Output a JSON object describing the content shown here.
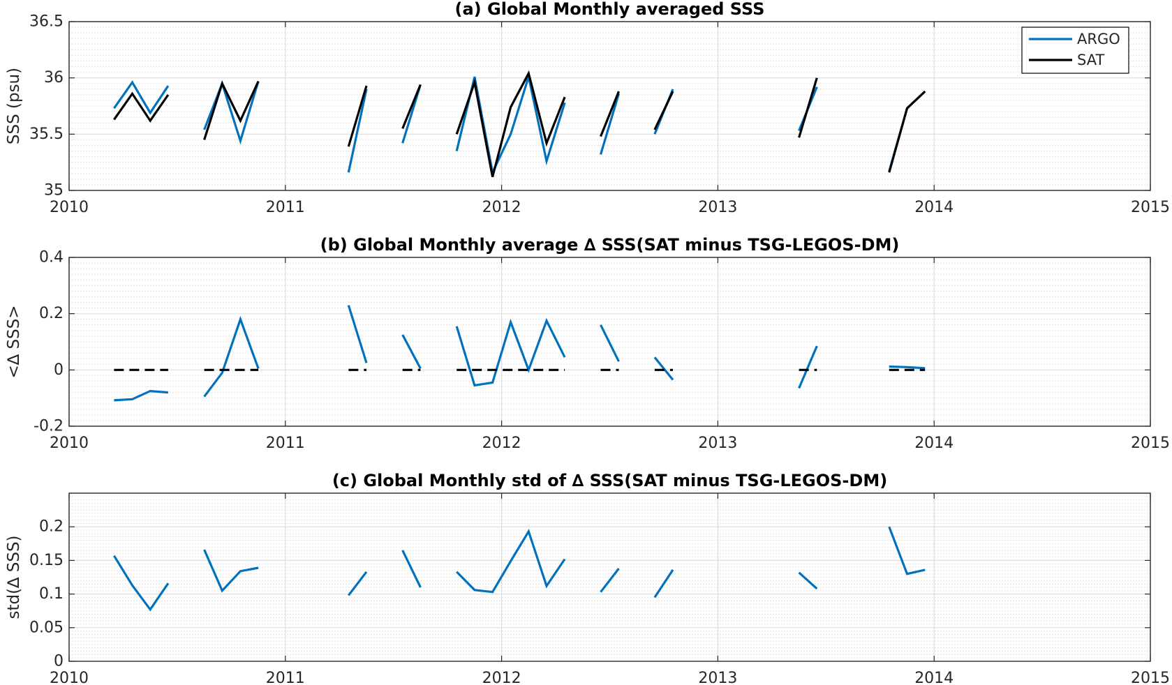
{
  "chart_data": [
    {
      "type": "line",
      "title": "(a) Global Monthly averaged SSS",
      "xlabel": "",
      "ylabel": "SSS (psu)",
      "xlim": [
        2010,
        2015
      ],
      "ylim": [
        35,
        36.5
      ],
      "xticks": [
        2010,
        2011,
        2012,
        2013,
        2014,
        2015
      ],
      "xtick_labels": [
        "2010",
        "2011",
        "2012",
        "2013",
        "2014",
        "2015"
      ],
      "yticks": [
        35,
        35.5,
        36,
        36.5
      ],
      "ytick_labels": [
        "35",
        "35.5",
        "36",
        "36.5"
      ],
      "grid": true,
      "minor_grid": true,
      "legend_position": "top-right",
      "series": [
        {
          "name": "ARGO",
          "color": "#0072BD",
          "segments": [
            [
              [
                2010.208,
                35.73
              ],
              [
                2010.292,
                35.96
              ],
              [
                2010.375,
                35.69
              ],
              [
                2010.458,
                35.93
              ]
            ],
            [
              [
                2010.625,
                35.54
              ],
              [
                2010.708,
                35.95
              ],
              [
                2010.792,
                35.44
              ],
              [
                2010.875,
                35.97
              ]
            ],
            [
              [
                2011.292,
                35.16
              ],
              [
                2011.375,
                35.9
              ]
            ],
            [
              [
                2011.542,
                35.42
              ],
              [
                2011.625,
                35.94
              ]
            ],
            [
              [
                2011.792,
                35.35
              ],
              [
                2011.875,
                36.01
              ],
              [
                2011.958,
                35.16
              ],
              [
                2012.042,
                35.5
              ],
              [
                2012.125,
                36.01
              ],
              [
                2012.208,
                35.26
              ],
              [
                2012.292,
                35.78
              ]
            ],
            [
              [
                2012.458,
                35.32
              ],
              [
                2012.542,
                35.86
              ]
            ],
            [
              [
                2012.708,
                35.5
              ],
              [
                2012.792,
                35.9
              ]
            ],
            [
              [
                2013.375,
                35.53
              ],
              [
                2013.458,
                35.92
              ]
            ],
            [
              [
                2013.792,
                35.17
              ],
              [
                2013.875,
                35.73
              ],
              [
                2013.958,
                35.88
              ]
            ]
          ]
        },
        {
          "name": "SAT",
          "color": "#000000",
          "segments": [
            [
              [
                2010.208,
                35.63
              ],
              [
                2010.292,
                35.86
              ],
              [
                2010.375,
                35.62
              ],
              [
                2010.458,
                35.85
              ]
            ],
            [
              [
                2010.625,
                35.45
              ],
              [
                2010.708,
                35.95
              ],
              [
                2010.792,
                35.62
              ],
              [
                2010.875,
                35.97
              ]
            ],
            [
              [
                2011.292,
                35.39
              ],
              [
                2011.375,
                35.93
              ]
            ],
            [
              [
                2011.542,
                35.55
              ],
              [
                2011.625,
                35.94
              ]
            ],
            [
              [
                2011.792,
                35.5
              ],
              [
                2011.875,
                35.96
              ],
              [
                2011.958,
                35.12
              ],
              [
                2012.042,
                35.74
              ],
              [
                2012.125,
                36.04
              ],
              [
                2012.208,
                35.42
              ],
              [
                2012.292,
                35.83
              ]
            ],
            [
              [
                2012.458,
                35.48
              ],
              [
                2012.542,
                35.88
              ]
            ],
            [
              [
                2012.708,
                35.54
              ],
              [
                2012.792,
                35.88
              ]
            ],
            [
              [
                2013.375,
                35.47
              ],
              [
                2013.458,
                36.0
              ]
            ],
            [
              [
                2013.792,
                35.16
              ],
              [
                2013.875,
                35.73
              ],
              [
                2013.958,
                35.88
              ]
            ]
          ]
        }
      ]
    },
    {
      "type": "line",
      "title": "(b) Global Monthly average ∆ SSS(SAT minus TSG-LEGOS-DM)",
      "xlabel": "",
      "ylabel": "<∆ SSS>",
      "xlim": [
        2010,
        2015
      ],
      "ylim": [
        -0.2,
        0.4
      ],
      "xticks": [
        2010,
        2011,
        2012,
        2013,
        2014,
        2015
      ],
      "xtick_labels": [
        "2010",
        "2011",
        "2012",
        "2013",
        "2014",
        "2015"
      ],
      "yticks": [
        -0.2,
        0,
        0.2,
        0.4
      ],
      "ytick_labels": [
        "-0.2",
        "0",
        "0.2",
        "0.4"
      ],
      "grid": true,
      "minor_grid": true,
      "series": [
        {
          "color": "#0072BD",
          "segments": [
            [
              [
                2010.208,
                -0.108
              ],
              [
                2010.292,
                -0.104
              ],
              [
                2010.375,
                -0.075
              ],
              [
                2010.458,
                -0.08
              ]
            ],
            [
              [
                2010.625,
                -0.095
              ],
              [
                2010.708,
                -0.01
              ],
              [
                2010.792,
                0.18
              ],
              [
                2010.875,
                0.005
              ]
            ],
            [
              [
                2011.292,
                0.23
              ],
              [
                2011.375,
                0.025
              ]
            ],
            [
              [
                2011.542,
                0.125
              ],
              [
                2011.625,
                0.005
              ]
            ],
            [
              [
                2011.792,
                0.155
              ],
              [
                2011.875,
                -0.055
              ],
              [
                2011.958,
                -0.045
              ],
              [
                2012.042,
                0.17
              ],
              [
                2012.125,
                0.0
              ],
              [
                2012.208,
                0.175
              ],
              [
                2012.292,
                0.045
              ]
            ],
            [
              [
                2012.458,
                0.16
              ],
              [
                2012.542,
                0.03
              ]
            ],
            [
              [
                2012.708,
                0.045
              ],
              [
                2012.792,
                -0.035
              ]
            ],
            [
              [
                2013.375,
                -0.065
              ],
              [
                2013.458,
                0.085
              ]
            ],
            [
              [
                2013.792,
                0.012
              ],
              [
                2013.875,
                0.01
              ],
              [
                2013.958,
                0.006
              ]
            ]
          ]
        },
        {
          "color": "#000000",
          "dashed": true,
          "segments": [
            [
              [
                2010.208,
                0
              ],
              [
                2010.458,
                0
              ]
            ],
            [
              [
                2010.625,
                0
              ],
              [
                2010.875,
                0
              ]
            ],
            [
              [
                2011.292,
                0
              ],
              [
                2011.375,
                0
              ]
            ],
            [
              [
                2011.542,
                0
              ],
              [
                2011.625,
                0
              ]
            ],
            [
              [
                2011.792,
                0
              ],
              [
                2012.292,
                0
              ]
            ],
            [
              [
                2012.458,
                0
              ],
              [
                2012.542,
                0
              ]
            ],
            [
              [
                2012.708,
                0
              ],
              [
                2012.792,
                0
              ]
            ],
            [
              [
                2013.375,
                0
              ],
              [
                2013.458,
                0
              ]
            ],
            [
              [
                2013.792,
                0
              ],
              [
                2013.958,
                0
              ]
            ]
          ]
        }
      ]
    },
    {
      "type": "line",
      "title": "(c) Global Monthly std of ∆ SSS(SAT minus TSG-LEGOS-DM)",
      "xlabel": "",
      "ylabel": "std(∆ SSS)",
      "xlim": [
        2010,
        2015
      ],
      "ylim": [
        0,
        0.25
      ],
      "xticks": [
        2010,
        2011,
        2012,
        2013,
        2014,
        2015
      ],
      "xtick_labels": [
        "2010",
        "2011",
        "2012",
        "2013",
        "2014",
        "2015"
      ],
      "yticks": [
        0,
        0.05,
        0.1,
        0.15,
        0.2
      ],
      "ytick_labels": [
        "0",
        "0.05",
        "0.1",
        "0.15",
        "0.2"
      ],
      "grid": true,
      "minor_grid": true,
      "series": [
        {
          "color": "#0072BD",
          "segments": [
            [
              [
                2010.208,
                0.157
              ],
              [
                2010.292,
                0.113
              ],
              [
                2010.375,
                0.077
              ],
              [
                2010.458,
                0.116
              ]
            ],
            [
              [
                2010.625,
                0.166
              ],
              [
                2010.708,
                0.105
              ],
              [
                2010.792,
                0.134
              ],
              [
                2010.875,
                0.139
              ]
            ],
            [
              [
                2011.292,
                0.098
              ],
              [
                2011.375,
                0.133
              ]
            ],
            [
              [
                2011.542,
                0.165
              ],
              [
                2011.625,
                0.11
              ]
            ],
            [
              [
                2011.792,
                0.133
              ],
              [
                2011.875,
                0.106
              ],
              [
                2011.958,
                0.103
              ],
              [
                2012.042,
                0.149
              ],
              [
                2012.125,
                0.193
              ],
              [
                2012.208,
                0.112
              ],
              [
                2012.292,
                0.152
              ]
            ],
            [
              [
                2012.458,
                0.103
              ],
              [
                2012.542,
                0.138
              ]
            ],
            [
              [
                2012.708,
                0.095
              ],
              [
                2012.792,
                0.136
              ]
            ],
            [
              [
                2013.375,
                0.132
              ],
              [
                2013.458,
                0.108
              ]
            ],
            [
              [
                2013.792,
                0.2
              ],
              [
                2013.875,
                0.13
              ],
              [
                2013.958,
                0.136
              ]
            ]
          ]
        }
      ]
    }
  ]
}
